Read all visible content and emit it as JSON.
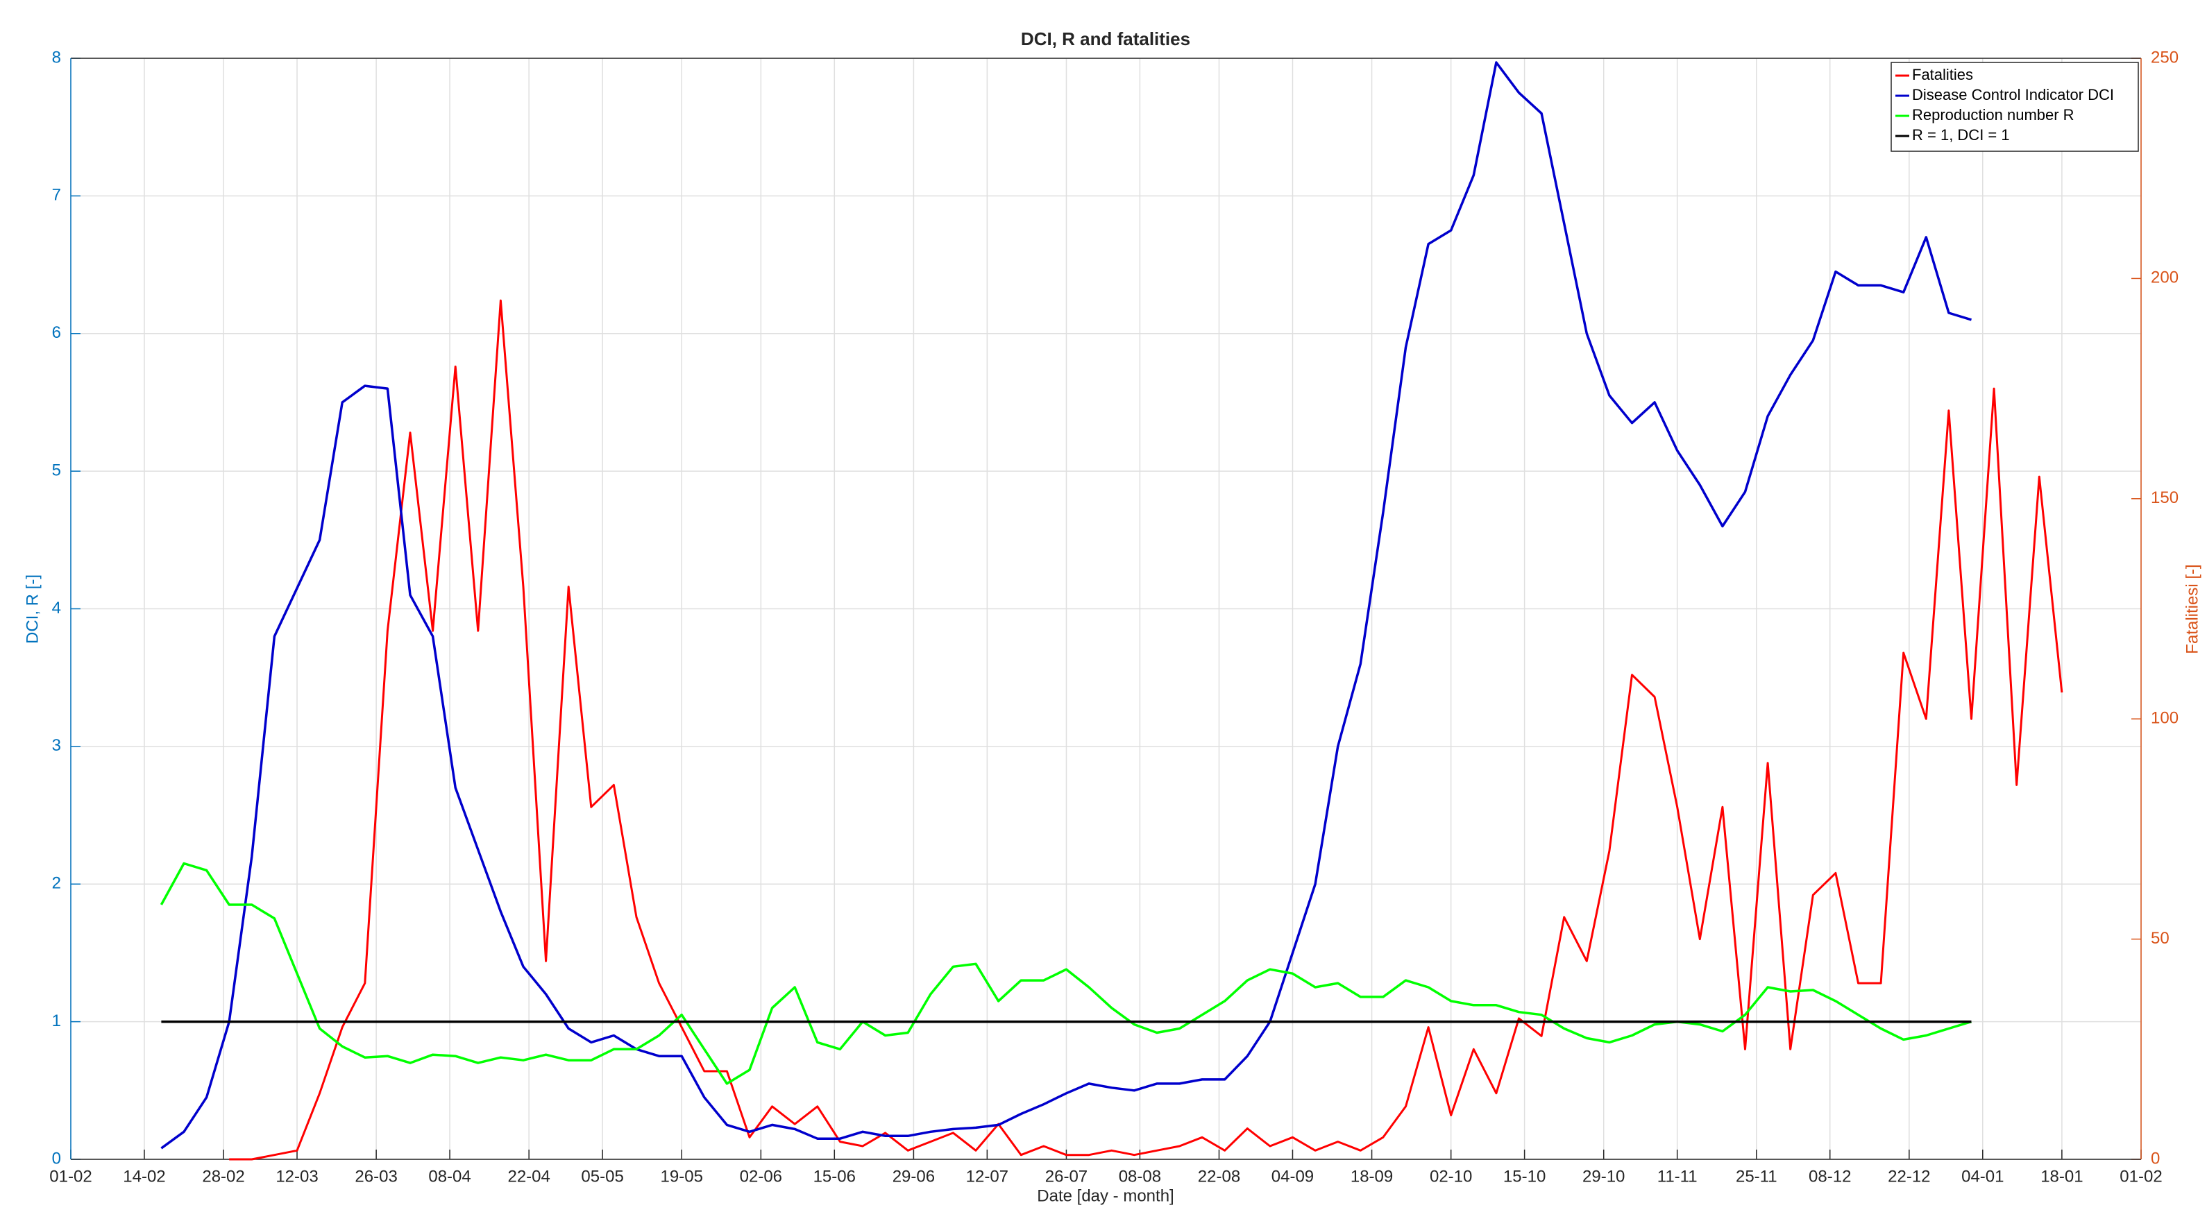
{
  "chart_data": {
    "type": "line",
    "title": "DCI, R and fatalities",
    "xlabel": "Date [day - month]",
    "ylabel": "DCI, R [-]",
    "y2label": "Fatalitiesi [-]",
    "xlim": [
      0,
      366
    ],
    "xticks": [
      {
        "value": 0,
        "label": "01-02"
      },
      {
        "value": 13,
        "label": "14-02"
      },
      {
        "value": 27,
        "label": "28-02"
      },
      {
        "value": 40,
        "label": "12-03"
      },
      {
        "value": 54,
        "label": "26-03"
      },
      {
        "value": 67,
        "label": "08-04"
      },
      {
        "value": 81,
        "label": "22-04"
      },
      {
        "value": 94,
        "label": "05-05"
      },
      {
        "value": 108,
        "label": "19-05"
      },
      {
        "value": 122,
        "label": "02-06"
      },
      {
        "value": 135,
        "label": "15-06"
      },
      {
        "value": 149,
        "label": "29-06"
      },
      {
        "value": 162,
        "label": "12-07"
      },
      {
        "value": 176,
        "label": "26-07"
      },
      {
        "value": 189,
        "label": "08-08"
      },
      {
        "value": 203,
        "label": "22-08"
      },
      {
        "value": 216,
        "label": "04-09"
      },
      {
        "value": 230,
        "label": "18-09"
      },
      {
        "value": 244,
        "label": "02-10"
      },
      {
        "value": 257,
        "label": "15-10"
      },
      {
        "value": 271,
        "label": "29-10"
      },
      {
        "value": 284,
        "label": "11-11"
      },
      {
        "value": 298,
        "label": "25-11"
      },
      {
        "value": 311,
        "label": "08-12"
      },
      {
        "value": 325,
        "label": "22-12"
      },
      {
        "value": 338,
        "label": "04-01"
      },
      {
        "value": 352,
        "label": "18-01"
      },
      {
        "value": 366,
        "label": "01-02"
      }
    ],
    "ylim": [
      0,
      8
    ],
    "yticks": [
      0,
      1,
      2,
      3,
      4,
      5,
      6,
      7,
      8
    ],
    "y2lim": [
      0,
      250
    ],
    "y2ticks": [
      0,
      50,
      100,
      150,
      200,
      250
    ],
    "grid": true,
    "legend": "upper right",
    "x": [
      16,
      20,
      24,
      28,
      32,
      36,
      40,
      44,
      48,
      52,
      56,
      60,
      64,
      68,
      72,
      76,
      80,
      84,
      88,
      92,
      96,
      100,
      104,
      108,
      112,
      116,
      120,
      124,
      128,
      132,
      136,
      140,
      144,
      148,
      152,
      156,
      160,
      164,
      168,
      172,
      176,
      180,
      184,
      188,
      192,
      196,
      200,
      204,
      208,
      212,
      216,
      220,
      224,
      228,
      232,
      236,
      240,
      244,
      248,
      252,
      256,
      260,
      264,
      268,
      272,
      276,
      280,
      284,
      288,
      292,
      296,
      300,
      304,
      308,
      312,
      316,
      320,
      324,
      328,
      332,
      336,
      340,
      344,
      348,
      352,
      356
    ],
    "series": [
      {
        "name": "Fatalities",
        "color": "#ff0000",
        "axis": "y2",
        "values": [
          null,
          null,
          null,
          0,
          0,
          1,
          2,
          15,
          30,
          40,
          120,
          165,
          120,
          180,
          120,
          195,
          130,
          45,
          130,
          80,
          85,
          55,
          40,
          30,
          20,
          20,
          5,
          12,
          8,
          12,
          4,
          3,
          6,
          2,
          4,
          6,
          2,
          8,
          1,
          3,
          1,
          1,
          2,
          1,
          2,
          3,
          5,
          2,
          7,
          3,
          5,
          2,
          4,
          2,
          5,
          12,
          30,
          10,
          25,
          15,
          32,
          28,
          55,
          45,
          70,
          110,
          105,
          80,
          50,
          80,
          25,
          90,
          25,
          60,
          65,
          40,
          40,
          115,
          100,
          170,
          100,
          175,
          85,
          155,
          106,
          null
        ]
      },
      {
        "name": "Disease Control Indicator DCI",
        "color": "#0000cc",
        "values": [
          0.08,
          0.2,
          0.45,
          1.0,
          2.2,
          3.8,
          4.15,
          4.5,
          5.5,
          5.62,
          5.6,
          4.1,
          3.8,
          2.7,
          2.25,
          1.8,
          1.4,
          1.2,
          0.95,
          0.85,
          0.9,
          0.8,
          0.75,
          0.75,
          0.45,
          0.25,
          0.2,
          0.25,
          0.22,
          0.15,
          0.15,
          0.2,
          0.17,
          0.17,
          0.2,
          0.22,
          0.23,
          0.25,
          0.33,
          0.4,
          0.48,
          0.55,
          0.52,
          0.5,
          0.55,
          0.55,
          0.58,
          0.58,
          0.75,
          1.0,
          1.5,
          2.0,
          3.0,
          3.6,
          4.7,
          5.9,
          6.65,
          6.75,
          7.15,
          7.97,
          7.75,
          7.6,
          6.8,
          6.0,
          5.55,
          5.35,
          5.5,
          5.15,
          4.9,
          4.6,
          4.85,
          5.4,
          5.7,
          5.95,
          6.45,
          6.35,
          6.35,
          6.3,
          6.7,
          6.15,
          6.1,
          null,
          null,
          null,
          null,
          null
        ]
      },
      {
        "name": "Reproduction number R",
        "color": "#00ff00",
        "values": [
          1.85,
          2.15,
          2.1,
          1.85,
          1.85,
          1.75,
          1.35,
          0.95,
          0.82,
          0.74,
          0.75,
          0.7,
          0.76,
          0.75,
          0.7,
          0.74,
          0.72,
          0.76,
          0.72,
          0.72,
          0.8,
          0.8,
          0.9,
          1.05,
          0.8,
          0.55,
          0.65,
          1.1,
          1.25,
          0.85,
          0.8,
          1.0,
          0.9,
          0.92,
          1.2,
          1.4,
          1.42,
          1.15,
          1.3,
          1.3,
          1.38,
          1.25,
          1.1,
          0.98,
          0.92,
          0.95,
          1.05,
          1.15,
          1.3,
          1.38,
          1.35,
          1.25,
          1.28,
          1.18,
          1.18,
          1.3,
          1.25,
          1.15,
          1.12,
          1.12,
          1.07,
          1.05,
          0.95,
          0.88,
          0.85,
          0.9,
          0.98,
          1.0,
          0.98,
          0.93,
          1.05,
          1.25,
          1.22,
          1.23,
          1.15,
          1.05,
          0.95,
          0.87,
          0.9,
          0.95,
          1.0,
          null,
          null,
          null,
          null,
          null
        ]
      },
      {
        "name": "R = 1, DCI = 1",
        "color": "#000000",
        "x": [
          16,
          336
        ],
        "values": [
          1,
          1
        ]
      }
    ]
  }
}
